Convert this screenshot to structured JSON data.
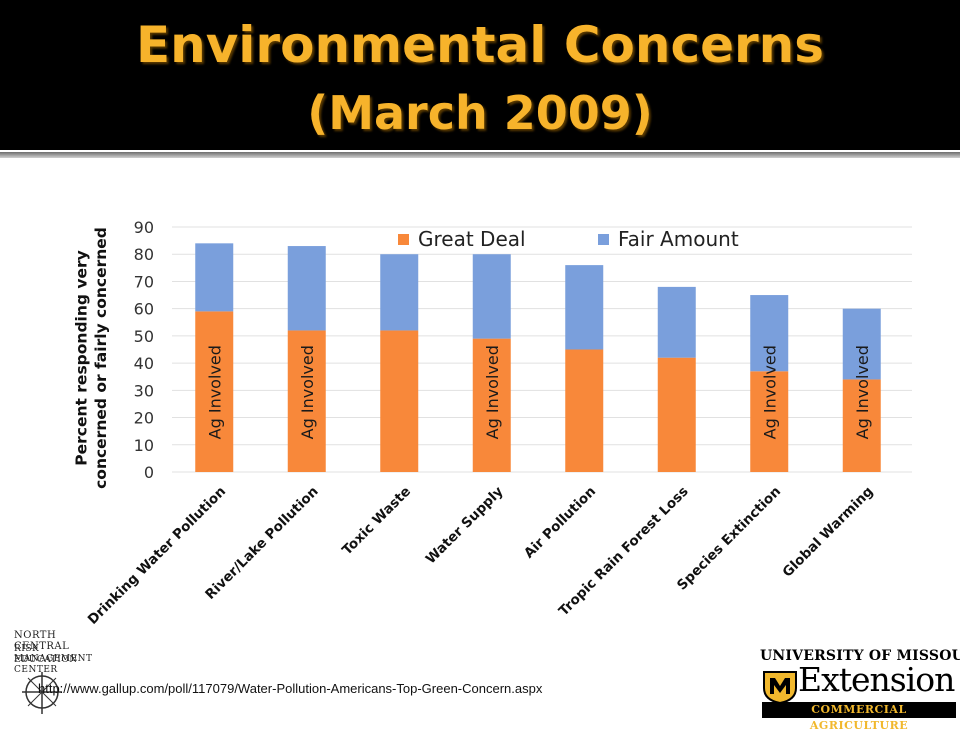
{
  "slide": {
    "title_line1": "Environmental Concerns",
    "title_line2": "(March 2009)",
    "source_url": "http://www.gallup.com/poll/117079/Water-Pollution-Americans-Top-Green-Concern.aspx"
  },
  "logos": {
    "ncr_line1": "NORTH CENTRAL",
    "ncr_line2": "RISK MANAGEMENT",
    "ncr_line3": "EDUCATION CENTER",
    "mu_line1": "UNIVERSITY OF MISSOURI",
    "mu_line2": "Extension",
    "mu_line3": "COMMERCIAL AGRICULTURE"
  },
  "colors": {
    "great_deal": "#f8883a",
    "fair_amount": "#7a9fdc",
    "title": "#f7b32b",
    "grid": "#e1e1e1"
  },
  "chart_data": {
    "type": "bar",
    "stacked": true,
    "categories": [
      "Drinking Water Pollution",
      "River/Lake Pollution",
      "Toxic Waste",
      "Water Supply",
      "Air Pollution",
      "Tropic Rain Forest Loss",
      "Species Extinction",
      "Global Warming"
    ],
    "series": [
      {
        "name": "Great Deal",
        "values": [
          59,
          52,
          52,
          49,
          45,
          42,
          37,
          34
        ]
      },
      {
        "name": "Fair Amount",
        "values": [
          25,
          31,
          28,
          31,
          31,
          26,
          28,
          26
        ]
      }
    ],
    "ylabel": "Percent responding very concerned or fairly concerned",
    "ylim": [
      0,
      90
    ],
    "yticks": [
      0,
      10,
      20,
      30,
      40,
      50,
      60,
      70,
      80,
      90
    ],
    "grid": true,
    "legend_position": "top-right",
    "annotation_text": "Ag Involved",
    "annotated_categories": [
      0,
      1,
      3,
      6,
      7
    ]
  }
}
